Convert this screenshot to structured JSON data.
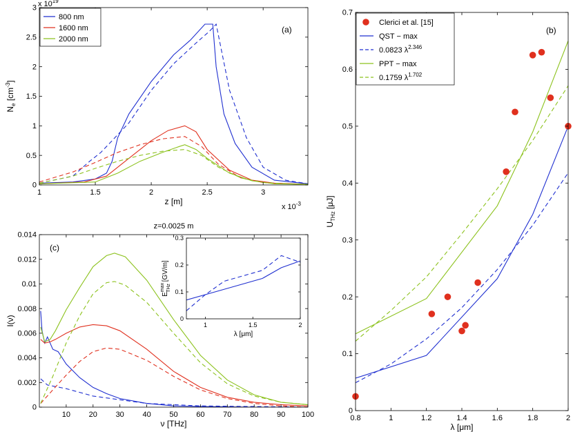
{
  "chart_data": [
    {
      "id": "a",
      "type": "line",
      "panel_label": "(a)",
      "xlabel": "z [m]",
      "ylabel": "N_e [cm^-3]",
      "ylabel_parts": {
        "main": "N",
        "sub": "e",
        "unit": "[cm",
        "sup": "-3",
        "close": "]"
      },
      "x_multiplier": {
        "base": "x 10",
        "exp": "-3"
      },
      "y_multiplier": {
        "base": "x 10",
        "exp": "19"
      },
      "xlim": [
        1,
        3.4
      ],
      "ylim": [
        0,
        3
      ],
      "xticks": [
        1,
        1.5,
        2,
        2.5,
        3
      ],
      "yticks": [
        0,
        0.5,
        1,
        1.5,
        2,
        2.5,
        3
      ],
      "legend": [
        "800 nm",
        "1600 nm",
        "2000 nm"
      ],
      "series": [
        {
          "name": "800 nm",
          "color": "#1f2fd0",
          "dash": false,
          "x": [
            1.0,
            1.3,
            1.5,
            1.6,
            1.65,
            1.7,
            1.8,
            2.0,
            2.2,
            2.35,
            2.48,
            2.55,
            2.58,
            2.65,
            2.75,
            2.9,
            3.1,
            3.4
          ],
          "y": [
            0.03,
            0.05,
            0.1,
            0.2,
            0.4,
            0.8,
            1.2,
            1.75,
            2.2,
            2.45,
            2.72,
            2.72,
            2.0,
            1.2,
            0.7,
            0.3,
            0.08,
            0.02
          ]
        },
        {
          "name": "800 nm (dashed)",
          "color": "#1f2fd0",
          "dash": true,
          "x": [
            1.0,
            1.3,
            1.45,
            1.55,
            1.65,
            1.8,
            2.0,
            2.2,
            2.4,
            2.52,
            2.58,
            2.7,
            2.85,
            3.0,
            3.2,
            3.4
          ],
          "y": [
            0.03,
            0.15,
            0.4,
            0.55,
            0.75,
            1.05,
            1.6,
            2.05,
            2.4,
            2.6,
            2.72,
            1.6,
            0.8,
            0.3,
            0.08,
            0.02
          ]
        },
        {
          "name": "1600 nm",
          "color": "#e0301e",
          "dash": false,
          "x": [
            1.0,
            1.4,
            1.6,
            1.8,
            2.0,
            2.15,
            2.3,
            2.4,
            2.5,
            2.7,
            2.9,
            3.1,
            3.4
          ],
          "y": [
            0.02,
            0.05,
            0.15,
            0.45,
            0.75,
            0.92,
            1.0,
            0.9,
            0.6,
            0.25,
            0.08,
            0.03,
            0.01
          ]
        },
        {
          "name": "1600 nm (dashed)",
          "color": "#e0301e",
          "dash": true,
          "x": [
            1.0,
            1.3,
            1.5,
            1.7,
            1.9,
            2.1,
            2.3,
            2.45,
            2.6,
            2.8,
            3.0,
            3.2,
            3.4
          ],
          "y": [
            0.05,
            0.22,
            0.38,
            0.55,
            0.68,
            0.78,
            0.82,
            0.65,
            0.35,
            0.12,
            0.04,
            0.02,
            0.01
          ]
        },
        {
          "name": "2000 nm",
          "color": "#8cc21d",
          "dash": false,
          "x": [
            1.0,
            1.5,
            1.7,
            1.9,
            2.1,
            2.25,
            2.3,
            2.4,
            2.5,
            2.7,
            2.9,
            3.1,
            3.4
          ],
          "y": [
            0.02,
            0.05,
            0.2,
            0.4,
            0.55,
            0.65,
            0.68,
            0.6,
            0.45,
            0.2,
            0.07,
            0.02,
            0.01
          ]
        },
        {
          "name": "2000 nm (dashed)",
          "color": "#8cc21d",
          "dash": true,
          "x": [
            1.0,
            1.3,
            1.5,
            1.7,
            1.9,
            2.1,
            2.3,
            2.45,
            2.6,
            2.8,
            3.0,
            3.2,
            3.4
          ],
          "y": [
            0.03,
            0.15,
            0.28,
            0.4,
            0.5,
            0.57,
            0.6,
            0.5,
            0.3,
            0.12,
            0.04,
            0.02,
            0.01
          ]
        }
      ]
    },
    {
      "id": "c",
      "type": "line",
      "panel_label": "(c)",
      "title": "z=0.0025 m",
      "xlabel": "ν [THz]",
      "ylabel": "I(ν)",
      "xlim": [
        0,
        100
      ],
      "ylim": [
        0,
        0.014
      ],
      "xticks": [
        10,
        20,
        30,
        40,
        50,
        60,
        70,
        80,
        90,
        100
      ],
      "yticks": [
        0,
        0.002,
        0.004,
        0.006,
        0.008,
        0.01,
        0.012,
        0.014
      ],
      "ytick_labels": [
        "0",
        "0.002",
        "0.004",
        "0.006",
        "0.008",
        "0.01",
        "0.012",
        "0.014"
      ],
      "series": [
        {
          "name": "800 nm",
          "color": "#1f2fd0",
          "dash": false,
          "x": [
            0.5,
            1,
            2,
            3,
            5,
            7,
            10,
            15,
            20,
            25,
            30,
            40,
            50,
            60,
            80,
            100
          ],
          "y": [
            0.0078,
            0.0062,
            0.0052,
            0.0057,
            0.0047,
            0.0045,
            0.0035,
            0.0024,
            0.0016,
            0.0011,
            0.0007,
            0.0003,
            0.0001,
            5e-05,
            0.0,
            0.0
          ]
        },
        {
          "name": "800 nm (dashed)",
          "color": "#1f2fd0",
          "dash": true,
          "x": [
            0.5,
            3,
            10,
            20,
            30,
            40,
            50,
            60,
            80,
            100
          ],
          "y": [
            0.0023,
            0.0018,
            0.0015,
            0.0009,
            0.0006,
            0.0003,
            0.0002,
            0.0001,
            5e-05,
            0.0
          ]
        },
        {
          "name": "1600 nm",
          "color": "#e0301e",
          "dash": false,
          "x": [
            0.5,
            2,
            4,
            6,
            10,
            15,
            20,
            25,
            30,
            40,
            50,
            60,
            70,
            80,
            90,
            100
          ],
          "y": [
            0.0055,
            0.0052,
            0.0053,
            0.0055,
            0.006,
            0.0065,
            0.0067,
            0.0066,
            0.0062,
            0.0047,
            0.0029,
            0.0016,
            0.0008,
            0.0004,
            0.0002,
            0.0001
          ]
        },
        {
          "name": "1600 nm (dashed)",
          "color": "#e0301e",
          "dash": true,
          "x": [
            0.5,
            5,
            10,
            15,
            20,
            25,
            30,
            40,
            50,
            60,
            70,
            80,
            90,
            100
          ],
          "y": [
            0.0003,
            0.0014,
            0.0026,
            0.0037,
            0.0045,
            0.0048,
            0.0047,
            0.0038,
            0.0025,
            0.0014,
            0.0007,
            0.0003,
            0.0001,
            0.0
          ]
        },
        {
          "name": "2000 nm",
          "color": "#8cc21d",
          "dash": false,
          "x": [
            0.5,
            2,
            4,
            6,
            10,
            15,
            20,
            25,
            28,
            32,
            40,
            50,
            60,
            70,
            80,
            90,
            100
          ],
          "y": [
            0.0065,
            0.0053,
            0.0055,
            0.0062,
            0.0079,
            0.0097,
            0.0114,
            0.0123,
            0.0125,
            0.0122,
            0.0103,
            0.0071,
            0.0042,
            0.0022,
            0.001,
            0.0004,
            0.0002
          ]
        },
        {
          "name": "2000 nm (dashed)",
          "color": "#8cc21d",
          "dash": true,
          "x": [
            0.5,
            5,
            10,
            15,
            20,
            25,
            28,
            32,
            40,
            50,
            60,
            70,
            80,
            90,
            100
          ],
          "y": [
            0.0003,
            0.0025,
            0.0052,
            0.0074,
            0.0092,
            0.0101,
            0.0102,
            0.0099,
            0.0085,
            0.006,
            0.0036,
            0.0019,
            0.0009,
            0.0004,
            0.0002
          ]
        }
      ]
    },
    {
      "id": "c-inset",
      "type": "line",
      "xlabel": "λ [μm]",
      "ylabel": "E_THz^max [GV/m]",
      "ylabel_parts": {
        "main": "E",
        "sub": "THz",
        "sup": "max",
        "unit": "[GV/m]"
      },
      "xlim": [
        0.8,
        2
      ],
      "ylim": [
        0,
        0.3
      ],
      "xticks": [
        1,
        1.5,
        2
      ],
      "yticks": [
        0,
        0.1,
        0.2,
        0.3
      ],
      "series": [
        {
          "name": "solid",
          "color": "#1f2fd0",
          "dash": false,
          "x": [
            0.8,
            1.2,
            1.6,
            1.8,
            2.0
          ],
          "y": [
            0.07,
            0.11,
            0.15,
            0.19,
            0.215
          ]
        },
        {
          "name": "dashed",
          "color": "#1f2fd0",
          "dash": true,
          "x": [
            0.8,
            1.0,
            1.2,
            1.4,
            1.6,
            1.8,
            2.0
          ],
          "y": [
            0.03,
            0.09,
            0.14,
            0.16,
            0.18,
            0.235,
            0.21
          ]
        }
      ]
    },
    {
      "id": "b",
      "type": "line",
      "panel_label": "(b)",
      "xlabel": "λ [μm]",
      "ylabel": "U_THz [μJ]",
      "ylabel_parts": {
        "main": "U",
        "sub": "THz",
        "unit": "[μJ]"
      },
      "xlim": [
        0.8,
        2.0
      ],
      "ylim": [
        0,
        0.7
      ],
      "xticks": [
        0.8,
        1,
        1.2,
        1.4,
        1.6,
        1.8,
        2
      ],
      "yticks": [
        0,
        0.1,
        0.2,
        0.3,
        0.4,
        0.5,
        0.6,
        0.7
      ],
      "legend": [
        {
          "label": "Clerici et al. [15]",
          "kind": "marker",
          "color": "#e0301e"
        },
        {
          "label": "QST − max",
          "kind": "solid",
          "color": "#1f2fd0"
        },
        {
          "label": "0.0823 λ",
          "sup": "2.346",
          "kind": "dashed",
          "color": "#1f2fd0"
        },
        {
          "label": "PPT − max",
          "kind": "solid",
          "color": "#8cc21d"
        },
        {
          "label": "0.1759 λ",
          "sup": "1.702",
          "kind": "dashed",
          "color": "#8cc21d"
        }
      ],
      "scatter": {
        "name": "Clerici et al. [15]",
        "color": "#e0301e",
        "x": [
          0.8,
          1.23,
          1.32,
          1.4,
          1.42,
          1.49,
          1.65,
          1.7,
          1.8,
          1.85,
          1.9,
          2.0
        ],
        "y": [
          0.025,
          0.17,
          0.2,
          0.14,
          0.15,
          0.225,
          0.42,
          0.525,
          0.625,
          0.63,
          0.55,
          0.5
        ]
      },
      "series": [
        {
          "name": "QST − max",
          "color": "#1f2fd0",
          "dash": false,
          "x": [
            0.8,
            1.2,
            1.6,
            1.8,
            2.0
          ],
          "y": [
            0.057,
            0.097,
            0.232,
            0.345,
            0.5
          ]
        },
        {
          "name": "0.0823 λ^2.346",
          "color": "#1f2fd0",
          "dash": true,
          "x": [
            0.8,
            1.0,
            1.2,
            1.4,
            1.6,
            1.8,
            2.0
          ],
          "y": [
            0.049,
            0.082,
            0.126,
            0.181,
            0.248,
            0.326,
            0.418
          ]
        },
        {
          "name": "PPT − max",
          "color": "#8cc21d",
          "dash": false,
          "x": [
            0.8,
            1.2,
            1.6,
            1.8,
            2.0
          ],
          "y": [
            0.135,
            0.197,
            0.36,
            0.49,
            0.65
          ]
        },
        {
          "name": "0.1759 λ^1.702",
          "color": "#8cc21d",
          "dash": true,
          "x": [
            0.8,
            1.0,
            1.2,
            1.4,
            1.6,
            1.8,
            2.0
          ],
          "y": [
            0.122,
            0.176,
            0.235,
            0.311,
            0.39,
            0.475,
            0.571
          ]
        }
      ]
    }
  ]
}
